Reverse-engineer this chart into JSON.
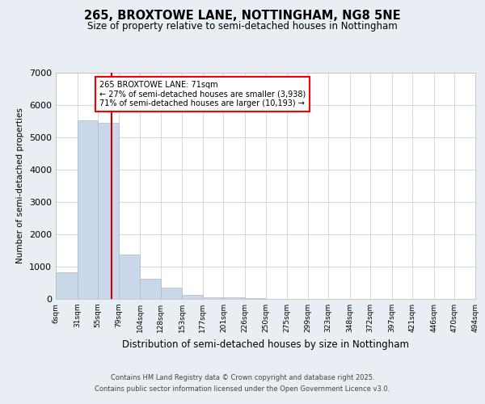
{
  "title": "265, BROXTOWE LANE, NOTTINGHAM, NG8 5NE",
  "subtitle": "Size of property relative to semi-detached houses in Nottingham",
  "xlabel": "Distribution of semi-detached houses by size in Nottingham",
  "ylabel": "Number of semi-detached properties",
  "annotation_line1": "265 BROXTOWE LANE: 71sqm",
  "annotation_line2": "← 27% of semi-detached houses are smaller (3,938)",
  "annotation_line3": "71% of semi-detached houses are larger (10,193) →",
  "footer_line1": "Contains HM Land Registry data © Crown copyright and database right 2025.",
  "footer_line2": "Contains public sector information licensed under the Open Government Licence v3.0.",
  "property_size": 71,
  "bar_color": "#c8d8e8",
  "bar_edge_color": "#aabbcc",
  "highlight_line_color": "#cc0000",
  "background_color": "#e8eef4",
  "plot_bg_color": "#ffffff",
  "bins": [
    6,
    31,
    55,
    79,
    104,
    128,
    153,
    177,
    201,
    226,
    250,
    275,
    299,
    323,
    348,
    372,
    397,
    421,
    446,
    470,
    494
  ],
  "bin_labels": [
    "6sqm",
    "31sqm",
    "55sqm",
    "79sqm",
    "104sqm",
    "128sqm",
    "153sqm",
    "177sqm",
    "201sqm",
    "226sqm",
    "250sqm",
    "275sqm",
    "299sqm",
    "323sqm",
    "348sqm",
    "372sqm",
    "397sqm",
    "421sqm",
    "446sqm",
    "470sqm",
    "494sqm"
  ],
  "values": [
    820,
    5530,
    5460,
    1380,
    620,
    340,
    130,
    60,
    40,
    20,
    10,
    5,
    3,
    2,
    1,
    1,
    0,
    0,
    0,
    0
  ],
  "ylim": [
    0,
    7000
  ],
  "yticks": [
    0,
    1000,
    2000,
    3000,
    4000,
    5000,
    6000,
    7000
  ],
  "grid_color": "#d0d8e4"
}
